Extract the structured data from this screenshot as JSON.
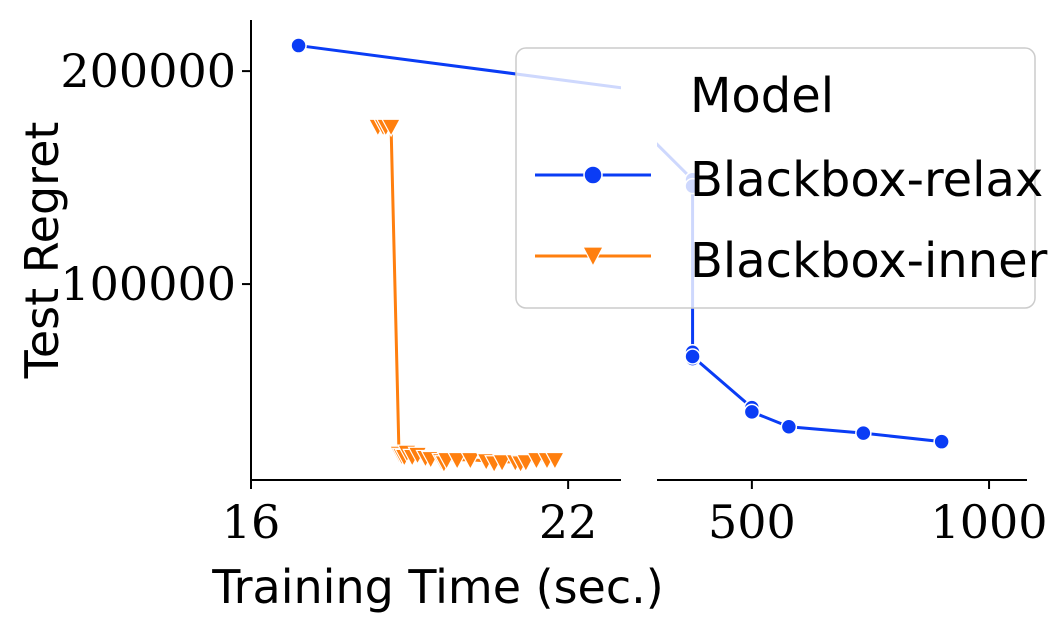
{
  "chart_data": {
    "type": "line",
    "xlabel": "Training Time (sec.)",
    "ylabel": "Test Regret",
    "ylim": [
      8000,
      224000
    ],
    "y_ticks": [
      100000,
      200000
    ],
    "y_tick_labels": [
      "100000",
      "200000"
    ],
    "broken_x_axis": true,
    "grid": false,
    "legend_position": "top-right",
    "legend_title": "Model",
    "left_panel": {
      "xlim": [
        16,
        23
      ],
      "x_ticks": [
        16,
        22
      ],
      "x_tick_labels": [
        "16",
        "22"
      ]
    },
    "right_panel": {
      "xlim": [
        300,
        1080
      ],
      "x_ticks": [
        500,
        1000
      ],
      "x_tick_labels": [
        "500",
        "1000"
      ]
    },
    "series": [
      {
        "name": "Blackbox-relax",
        "color": "#0a3cf5",
        "marker": "circle",
        "points": [
          {
            "x": 16.9,
            "y": 212000
          },
          {
            "x": 375,
            "y": 149000
          },
          {
            "x": 375,
            "y": 146000
          },
          {
            "x": 375,
            "y": 68000
          },
          {
            "x": 375,
            "y": 65000
          },
          {
            "x": 375,
            "y": 66000
          },
          {
            "x": 500,
            "y": 42000
          },
          {
            "x": 500,
            "y": 40000
          },
          {
            "x": 578,
            "y": 33000
          },
          {
            "x": 735,
            "y": 30000
          },
          {
            "x": 900,
            "y": 26000
          }
        ]
      },
      {
        "name": "Blackbox-inner",
        "color": "#ff7f0e",
        "marker": "triangle-down",
        "points": [
          {
            "x": 18.4,
            "y": 174000
          },
          {
            "x": 18.5,
            "y": 174000
          },
          {
            "x": 18.55,
            "y": 174000
          },
          {
            "x": 18.65,
            "y": 174000
          },
          {
            "x": 18.8,
            "y": 20500
          },
          {
            "x": 18.85,
            "y": 19500
          },
          {
            "x": 18.9,
            "y": 19000
          },
          {
            "x": 18.95,
            "y": 21000
          },
          {
            "x": 19.05,
            "y": 19000
          },
          {
            "x": 19.15,
            "y": 20000
          },
          {
            "x": 19.3,
            "y": 18500
          },
          {
            "x": 19.4,
            "y": 18000
          },
          {
            "x": 19.6,
            "y": 17000
          },
          {
            "x": 19.65,
            "y": 16000
          },
          {
            "x": 19.7,
            "y": 17500
          },
          {
            "x": 19.9,
            "y": 17500
          },
          {
            "x": 20.15,
            "y": 17500
          },
          {
            "x": 20.45,
            "y": 17000
          },
          {
            "x": 20.6,
            "y": 16000
          },
          {
            "x": 20.75,
            "y": 16500
          },
          {
            "x": 21.0,
            "y": 16500
          },
          {
            "x": 21.1,
            "y": 16000
          },
          {
            "x": 21.2,
            "y": 16500
          },
          {
            "x": 21.4,
            "y": 17500
          },
          {
            "x": 21.6,
            "y": 17500
          },
          {
            "x": 21.75,
            "y": 17500
          }
        ]
      }
    ]
  }
}
